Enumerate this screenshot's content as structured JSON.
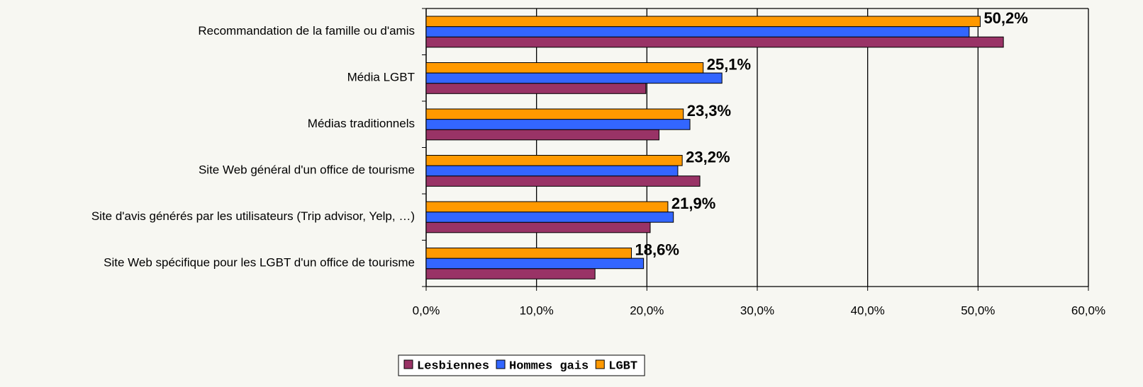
{
  "chart_data": {
    "type": "barh",
    "categories": [
      "Recommandation de la famille ou d'amis",
      "Média LGBT",
      "Médias traditionnels",
      "Site Web général d'un office de tourisme",
      "Site d'avis générés par les utilisateurs (Trip advisor, Yelp, …)",
      "Site Web spécifique pour les LGBT d'un office de tourisme"
    ],
    "series": [
      {
        "name": "Lesbiennes",
        "color": "#993366",
        "values": [
          52.3,
          19.9,
          21.1,
          24.8,
          20.3,
          15.3
        ]
      },
      {
        "name": "Hommes gais",
        "color": "#3366ff",
        "values": [
          49.2,
          26.8,
          23.9,
          22.8,
          22.4,
          19.7
        ]
      },
      {
        "name": "LGBT",
        "color": "#ff9900",
        "values": [
          50.2,
          25.1,
          23.3,
          23.2,
          21.9,
          18.6
        ],
        "value_labels": [
          "50,2%",
          "25,1%",
          "23,3%",
          "23,2%",
          "21,9%",
          "18,6%"
        ]
      }
    ],
    "xlim": [
      0,
      60
    ],
    "xticks": [
      {
        "value": 0,
        "label": "0,0%"
      },
      {
        "value": 10,
        "label": "10,0%"
      },
      {
        "value": 20,
        "label": "20,0%"
      },
      {
        "value": 30,
        "label": "30,0%"
      },
      {
        "value": 40,
        "label": "40,0%"
      },
      {
        "value": 50,
        "label": "50,0%"
      },
      {
        "value": 60,
        "label": "60,0%"
      }
    ],
    "grid": true,
    "legend": "bottom"
  }
}
